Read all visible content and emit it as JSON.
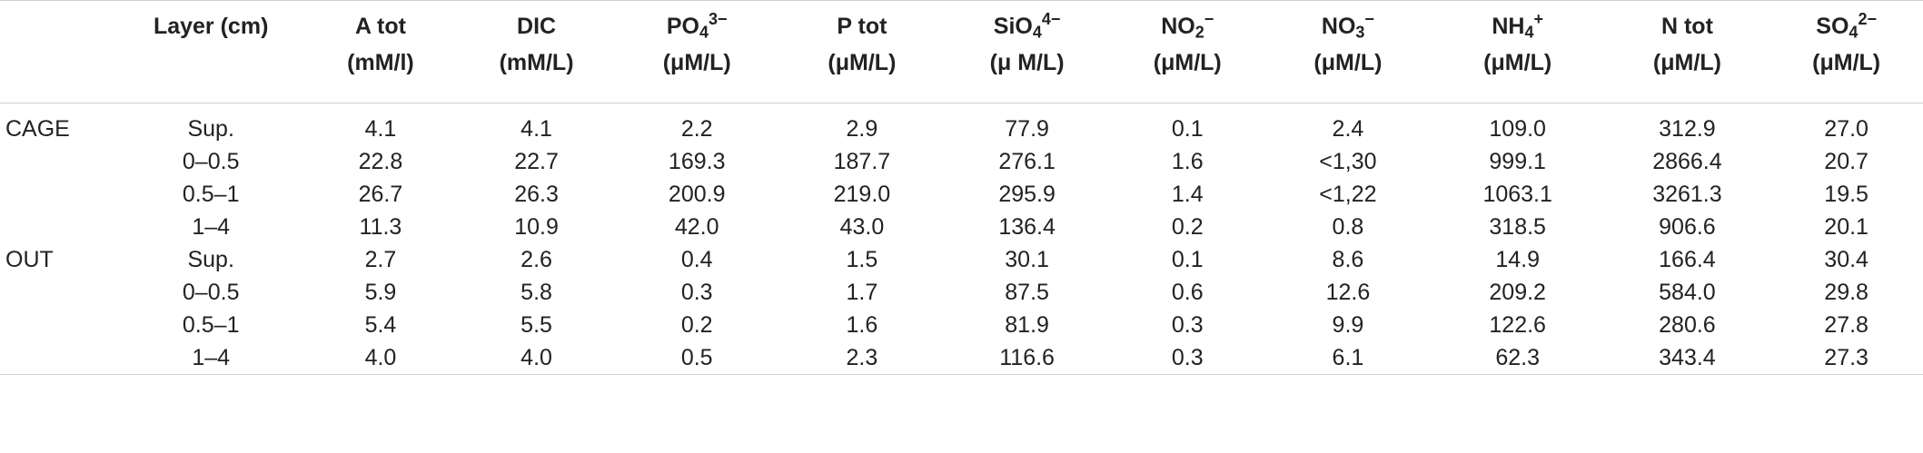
{
  "table": {
    "headers": {
      "group": "",
      "layer": "Layer (cm)",
      "atot": {
        "name": "A tot",
        "unit": "(mM/l)"
      },
      "dic": {
        "name": "DIC",
        "unit": "(mM/L)"
      },
      "po4": {
        "base": "PO",
        "sub": "4",
        "sup": "3−",
        "unit": "(μM/L)"
      },
      "ptot": {
        "name": "P tot",
        "unit": "(μM/L)"
      },
      "sio4": {
        "base": "SiO",
        "sub": "4",
        "sup": "4−",
        "unit": "(μ M/L)"
      },
      "no2": {
        "base": "NO",
        "sub": "2",
        "sup": "−",
        "unit": "(μM/L)"
      },
      "no3": {
        "base": "NO",
        "sub": "3",
        "sup": "−",
        "unit": "(μM/L)"
      },
      "nh4": {
        "base": "NH",
        "sub": "4",
        "sup": "+",
        "unit": "(μM/L)"
      },
      "ntot": {
        "name": "N tot",
        "unit": "(μM/L)"
      },
      "so4": {
        "base": "SO",
        "sub": "4",
        "sup": "2−",
        "unit": "(μM/L)"
      }
    },
    "rows": [
      [
        "CAGE",
        "Sup.",
        "4.1",
        "4.1",
        "2.2",
        "2.9",
        "77.9",
        "0.1",
        "2.4",
        "109.0",
        "312.9",
        "27.0"
      ],
      [
        "",
        "0–0.5",
        "22.8",
        "22.7",
        "169.3",
        "187.7",
        "276.1",
        "1.6",
        "<1,30",
        "999.1",
        "2866.4",
        "20.7"
      ],
      [
        "",
        "0.5–1",
        "26.7",
        "26.3",
        "200.9",
        "219.0",
        "295.9",
        "1.4",
        "<1,22",
        "1063.1",
        "3261.3",
        "19.5"
      ],
      [
        "",
        "1–4",
        "11.3",
        "10.9",
        "42.0",
        "43.0",
        "136.4",
        "0.2",
        "0.8",
        "318.5",
        "906.6",
        "20.1"
      ],
      [
        "OUT",
        "Sup.",
        "2.7",
        "2.6",
        "0.4",
        "1.5",
        "30.1",
        "0.1",
        "8.6",
        "14.9",
        "166.4",
        "30.4"
      ],
      [
        "",
        "0–0.5",
        "5.9",
        "5.8",
        "0.3",
        "1.7",
        "87.5",
        "0.6",
        "12.6",
        "209.2",
        "584.0",
        "29.8"
      ],
      [
        "",
        "0.5–1",
        "5.4",
        "5.5",
        "0.2",
        "1.6",
        "81.9",
        "0.3",
        "9.9",
        "122.6",
        "280.6",
        "27.8"
      ],
      [
        "",
        "1–4",
        "4.0",
        "4.0",
        "0.5",
        "2.3",
        "116.6",
        "0.3",
        "6.1",
        "62.3",
        "343.4",
        "27.3"
      ]
    ]
  }
}
